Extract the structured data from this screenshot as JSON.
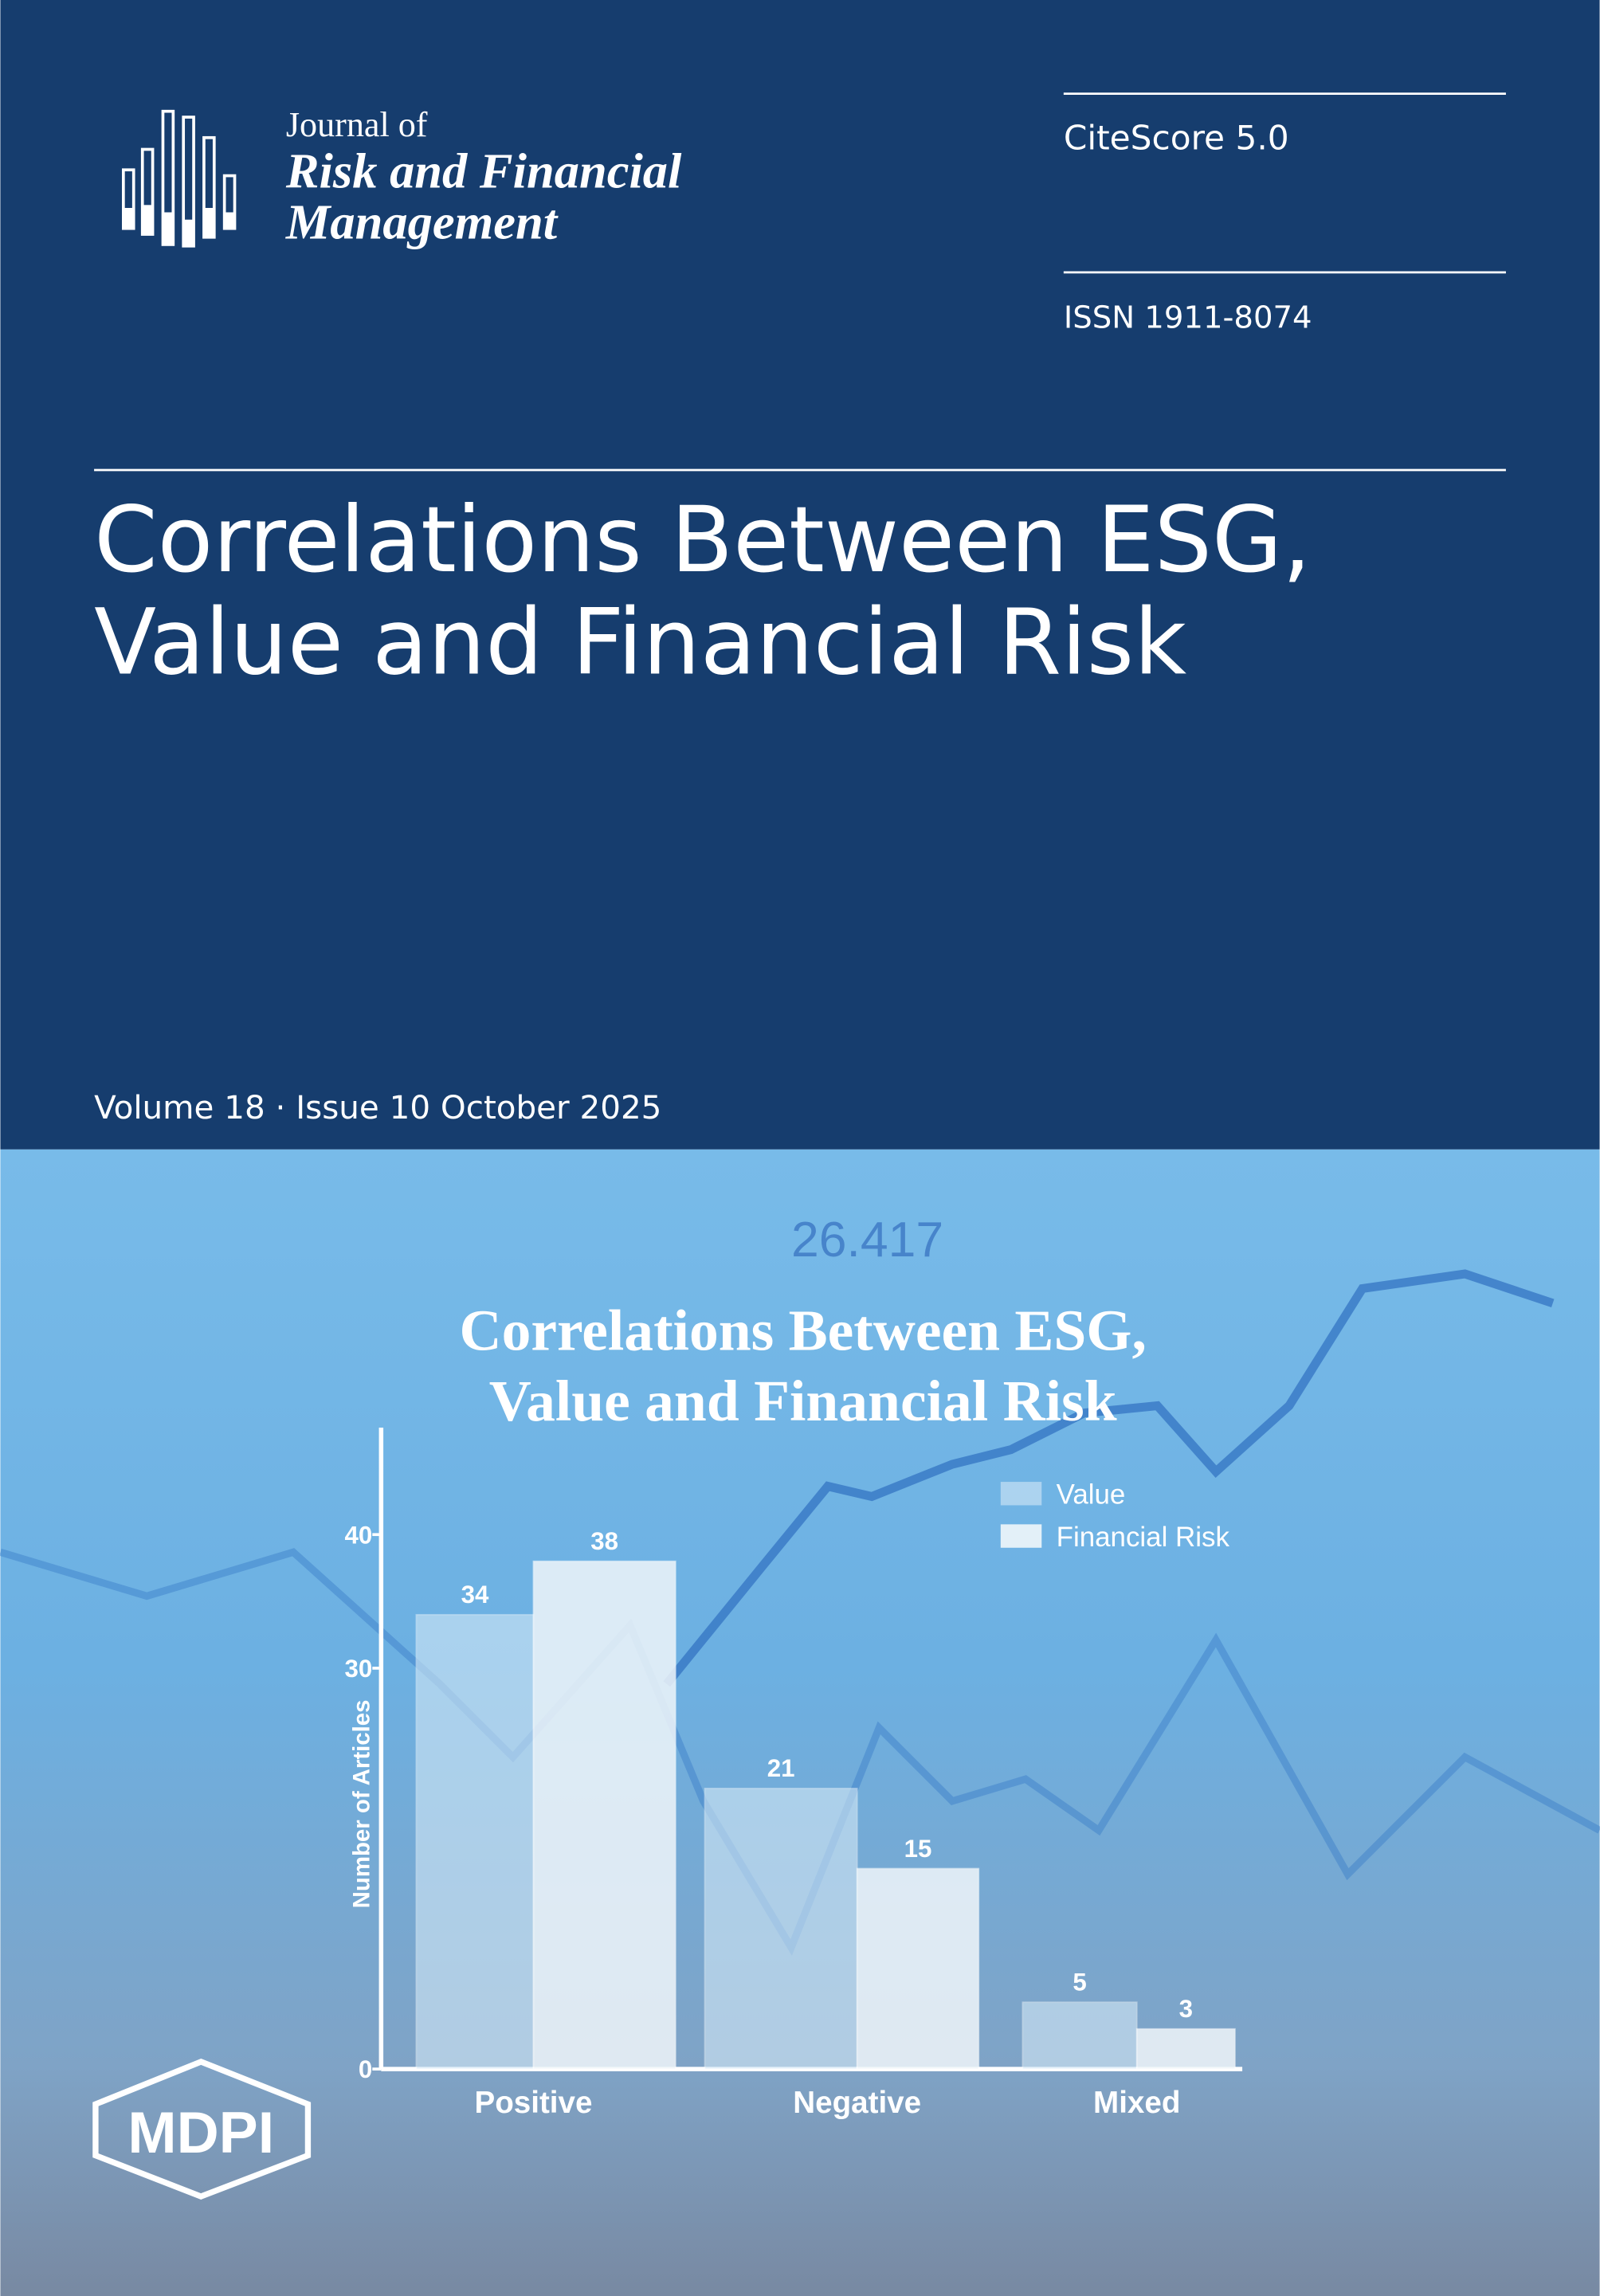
{
  "journal": {
    "name_lines": [
      "Journal of",
      "Risk and Financial",
      "Management"
    ]
  },
  "metrics": {
    "citescore": "CiteScore 5.0",
    "issn": "ISSN 1911-8074"
  },
  "title_lines": [
    "Correlations Between ESG,",
    "Value and Financial Risk"
  ],
  "issue": "Volume 18 · Issue 10 October 2025",
  "publisher": "MDPI",
  "chart_data": {
    "type": "bar",
    "title": [
      "Correlations Between ESG,",
      "Value and Financial Risk"
    ],
    "y_label": "Number of Articles",
    "categories": [
      "Positive",
      "Negative",
      "Mixed"
    ],
    "series": [
      {
        "name": "Value",
        "color": "#d3e8f6",
        "values": [
          34,
          21,
          5
        ]
      },
      {
        "name": "Financial Risk",
        "color": "#f0f6fa",
        "values": [
          38,
          15,
          3
        ]
      }
    ],
    "ylim": [
      0,
      48
    ],
    "yticks": [
      0,
      30,
      40
    ],
    "legend": "top-right"
  }
}
